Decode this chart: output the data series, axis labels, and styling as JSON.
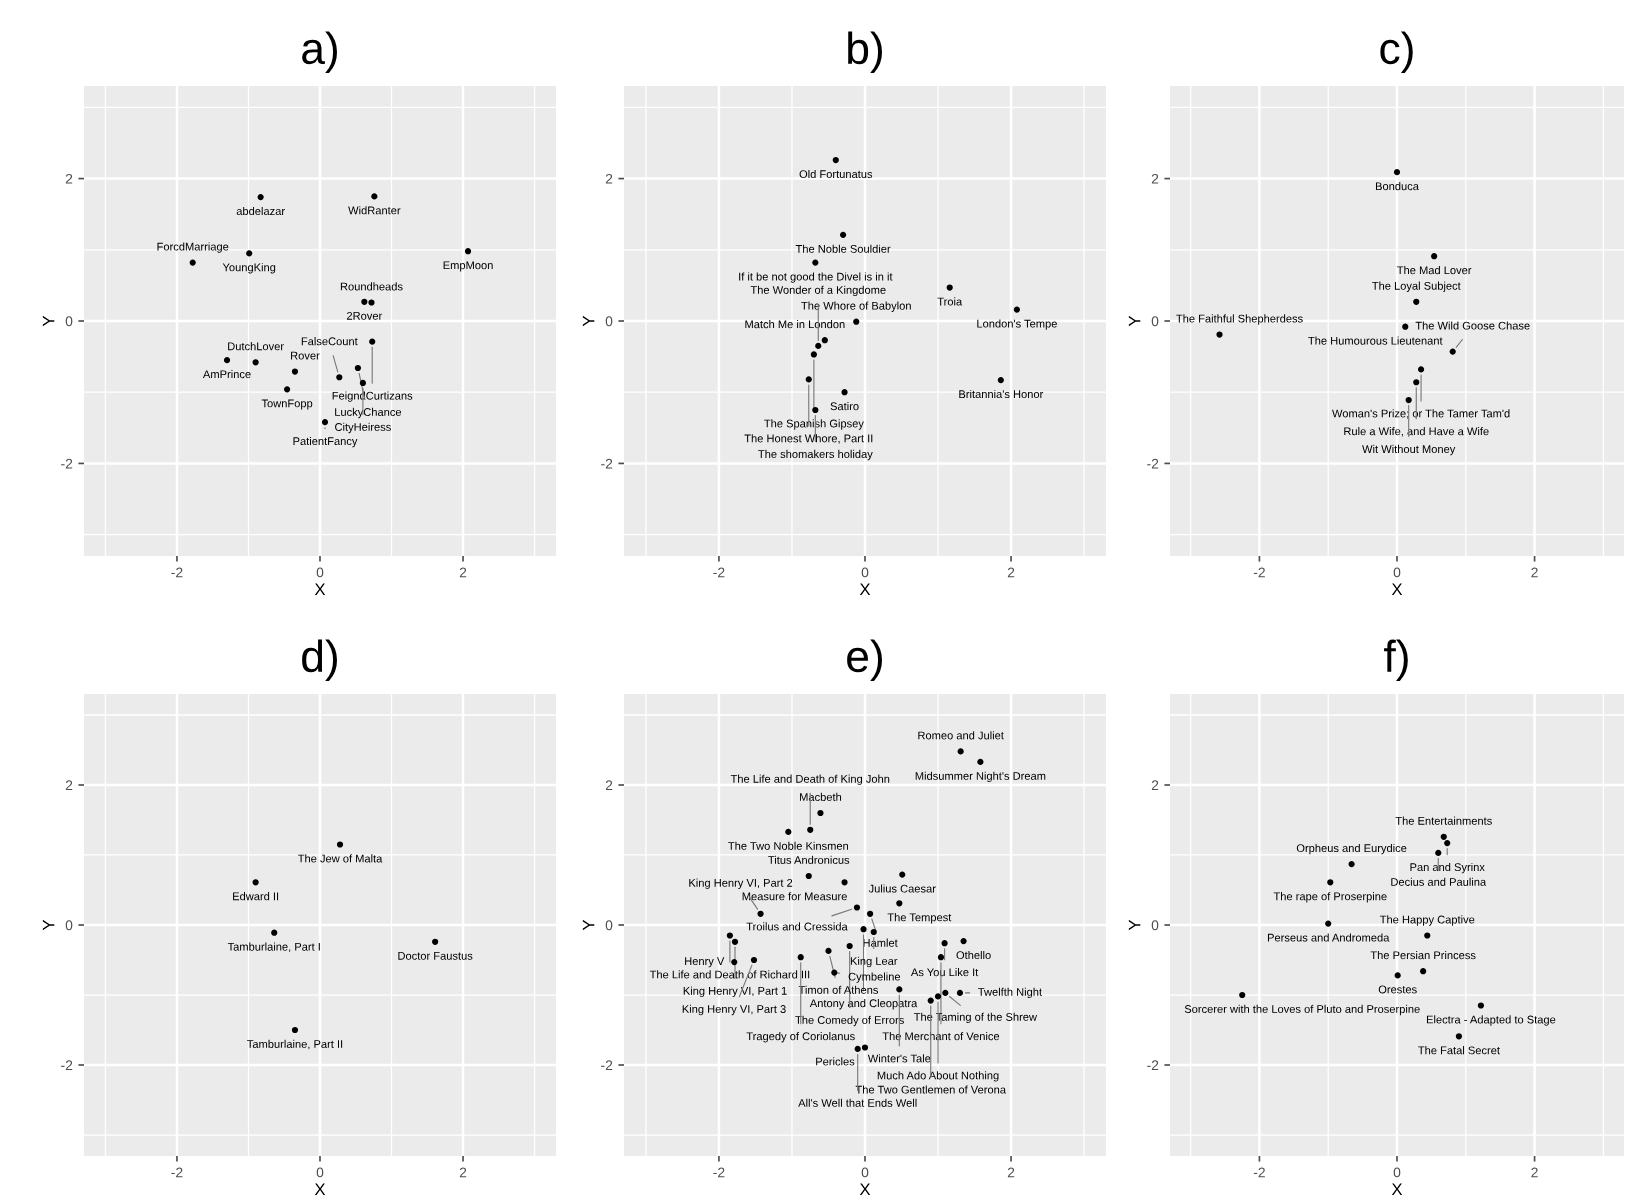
{
  "chart_data": [
    {
      "type": "scatter",
      "title": "a)",
      "xlabel": "X",
      "ylabel": "Y",
      "xlim": [
        -3.3,
        3.3
      ],
      "ylim": [
        -3.3,
        3.3
      ],
      "xticks": [
        -2,
        0,
        2
      ],
      "yticks": [
        -2,
        0,
        2
      ],
      "grid": true,
      "marker": "circle",
      "series": [
        {
          "color": "#000000",
          "x": [
            -0.83,
            0.76,
            2.07,
            -0.99,
            -1.78,
            0.62,
            0.72,
            0.73,
            -1.3,
            -0.9,
            -0.35,
            0.53,
            0.27,
            0.6,
            -0.46,
            0.07
          ],
          "values": [
            1.74,
            1.75,
            0.98,
            0.95,
            0.82,
            0.27,
            0.26,
            -0.29,
            -0.55,
            -0.58,
            -0.71,
            -0.66,
            -0.79,
            -0.87,
            -0.96,
            -1.42
          ]
        }
      ],
      "annotations": [
        {
          "text": "abdelazar",
          "x": -0.83,
          "y": 1.74
        },
        {
          "text": "WidRanter",
          "x": 0.76,
          "y": 1.75
        },
        {
          "text": "EmpMoon",
          "x": 2.07,
          "y": 0.98
        },
        {
          "text": "YoungKing",
          "x": -0.99,
          "y": 0.95
        },
        {
          "text": "ForcdMarriage",
          "x": -1.78,
          "y": 0.82
        },
        {
          "text": "2Rover",
          "x": 0.62,
          "y": 0.27
        },
        {
          "text": "Roundheads",
          "x": 0.72,
          "y": 0.26
        },
        {
          "text": "FeigndCurtizans",
          "x": 0.73,
          "y": -0.29
        },
        {
          "text": "AmPrince",
          "x": -1.3,
          "y": -0.55
        },
        {
          "text": "DutchLover",
          "x": -0.9,
          "y": -0.58
        },
        {
          "text": "Rover",
          "x": -0.35,
          "y": -0.71
        },
        {
          "text": "LuckyChance",
          "x": 0.53,
          "y": -0.66
        },
        {
          "text": "FalseCount",
          "x": 0.27,
          "y": -0.79
        },
        {
          "text": "CityHeiress",
          "x": 0.6,
          "y": -0.87
        },
        {
          "text": "TownFopp",
          "x": -0.46,
          "y": -0.96
        },
        {
          "text": "PatientFancy",
          "x": 0.07,
          "y": -1.42
        }
      ]
    },
    {
      "type": "scatter",
      "title": "b)",
      "xlabel": "X",
      "ylabel": "Y",
      "xlim": [
        -3.3,
        3.3
      ],
      "ylim": [
        -3.3,
        3.3
      ],
      "xticks": [
        -2,
        0,
        2
      ],
      "yticks": [
        -2,
        0,
        2
      ],
      "grid": true,
      "marker": "circle",
      "series": [
        {
          "color": "#000000",
          "x": [
            -0.4,
            -0.3,
            -0.68,
            1.16,
            2.08,
            -0.12,
            -0.55,
            -0.64,
            -0.7,
            -0.77,
            1.86,
            -0.28,
            -0.68
          ],
          "values": [
            2.26,
            1.21,
            0.82,
            0.47,
            0.16,
            -0.01,
            -0.27,
            -0.35,
            -0.47,
            -0.82,
            -0.83,
            -1.0,
            -1.25
          ]
        }
      ],
      "annotations": [
        {
          "text": "Old Fortunatus",
          "x": -0.4,
          "y": 2.26
        },
        {
          "text": "The Noble Souldier",
          "x": -0.3,
          "y": 1.21
        },
        {
          "text": "If it be not good the Divel is in it",
          "x": -0.68,
          "y": 0.82
        },
        {
          "text": "Troia",
          "x": 1.16,
          "y": 0.47
        },
        {
          "text": "London's Tempe",
          "x": 2.08,
          "y": 0.16
        },
        {
          "text": "The Whore of Babylon",
          "x": -0.12,
          "y": -0.01
        },
        {
          "text": "Match Me in London",
          "x": -0.55,
          "y": -0.27
        },
        {
          "text": "The Wonder of a Kingdome",
          "x": -0.64,
          "y": -0.35
        },
        {
          "text": "The Spanish Gipsey",
          "x": -0.7,
          "y": -0.47
        },
        {
          "text": "The Honest Whore, Part II",
          "x": -0.77,
          "y": -0.82
        },
        {
          "text": "Britannia's Honor",
          "x": 1.86,
          "y": -0.83
        },
        {
          "text": "Satiro",
          "x": -0.28,
          "y": -1.0
        },
        {
          "text": "The shomakers holiday",
          "x": -0.68,
          "y": -1.25
        }
      ]
    },
    {
      "type": "scatter",
      "title": "c)",
      "xlabel": "X",
      "ylabel": "Y",
      "xlim": [
        -3.3,
        3.3
      ],
      "ylim": [
        -3.3,
        3.3
      ],
      "xticks": [
        -2,
        0,
        2
      ],
      "yticks": [
        -2,
        0,
        2
      ],
      "grid": true,
      "marker": "circle",
      "series": [
        {
          "color": "#000000",
          "x": [
            0.0,
            0.54,
            0.28,
            0.12,
            -2.58,
            0.81,
            0.35,
            0.28,
            0.17
          ],
          "values": [
            2.09,
            0.91,
            0.27,
            -0.08,
            -0.19,
            -0.43,
            -0.68,
            -0.86,
            -1.11
          ]
        }
      ],
      "annotations": [
        {
          "text": "Bonduca",
          "x": 0.0,
          "y": 2.09
        },
        {
          "text": "The Mad Lover",
          "x": 0.54,
          "y": 0.91
        },
        {
          "text": "The Loyal Subject",
          "x": 0.28,
          "y": 0.27
        },
        {
          "text": "The Humourous Lieutenant",
          "x": 0.12,
          "y": -0.08
        },
        {
          "text": "The Faithful Shepherdess",
          "x": -2.58,
          "y": -0.19
        },
        {
          "text": "The Wild Goose Chase",
          "x": 0.81,
          "y": -0.43
        },
        {
          "text": "Woman's Prize; or The Tamer Tam'd",
          "x": 0.35,
          "y": -0.68
        },
        {
          "text": "Rule a Wife, and Have a Wife",
          "x": 0.28,
          "y": -0.86
        },
        {
          "text": "Wit Without Money",
          "x": 0.17,
          "y": -1.11
        }
      ]
    },
    {
      "type": "scatter",
      "title": "d)",
      "xlabel": "X",
      "ylabel": "Y",
      "xlim": [
        -3.3,
        3.3
      ],
      "ylim": [
        -3.3,
        3.3
      ],
      "xticks": [
        -2,
        0,
        2
      ],
      "yticks": [
        -2,
        0,
        2
      ],
      "grid": true,
      "marker": "circle",
      "series": [
        {
          "color": "#000000",
          "x": [
            0.28,
            -0.9,
            -0.64,
            1.61,
            -0.35
          ],
          "values": [
            1.15,
            0.61,
            -0.11,
            -0.24,
            -1.5
          ]
        }
      ],
      "annotations": [
        {
          "text": "The Jew of Malta",
          "x": 0.28,
          "y": 1.15
        },
        {
          "text": "Edward II",
          "x": -0.9,
          "y": 0.61
        },
        {
          "text": "Tamburlaine, Part I",
          "x": -0.64,
          "y": -0.11
        },
        {
          "text": "Doctor Faustus",
          "x": 1.61,
          "y": -0.24
        },
        {
          "text": "Tamburlaine, Part II",
          "x": -0.35,
          "y": -1.5
        }
      ]
    },
    {
      "type": "scatter",
      "title": "e)",
      "xlabel": "X",
      "ylabel": "Y",
      "xlim": [
        -3.3,
        3.3
      ],
      "ylim": [
        -3.3,
        3.3
      ],
      "xticks": [
        -2,
        0,
        2
      ],
      "yticks": [
        -2,
        0,
        2
      ],
      "grid": true,
      "marker": "circle",
      "series": [
        {
          "color": "#000000",
          "x": [
            1.31,
            1.58,
            -0.61,
            -1.05,
            -0.75,
            -0.77,
            0.51,
            -0.28,
            -0.11,
            0.47,
            0.07,
            -1.43,
            -0.02,
            0.12,
            -1.85,
            -1.78,
            1.09,
            1.35,
            -0.21,
            -0.5,
            1.04,
            -1.52,
            -1.79,
            -0.88,
            -0.42,
            0.47,
            1.1,
            1.3,
            1.0,
            0.9,
            -0.1,
            0.0
          ],
          "values": [
            2.48,
            2.33,
            1.6,
            1.33,
            1.36,
            0.7,
            0.72,
            0.61,
            0.25,
            0.31,
            0.16,
            0.16,
            -0.06,
            -0.1,
            -0.15,
            -0.24,
            -0.26,
            -0.23,
            -0.3,
            -0.37,
            -0.46,
            -0.5,
            -0.53,
            -0.46,
            -0.68,
            -0.92,
            -0.97,
            -0.97,
            -1.02,
            -1.08,
            -1.77,
            -1.75
          ]
        }
      ],
      "annotations": [
        {
          "text": "Romeo and Juliet",
          "x": 1.31,
          "y": 2.48
        },
        {
          "text": "Midsummer Night's Dream",
          "x": 1.58,
          "y": 2.33
        },
        {
          "text": "Macbeth",
          "x": -0.61,
          "y": 1.6
        },
        {
          "text": "The Two Noble Kinsmen",
          "x": -1.05,
          "y": 1.33
        },
        {
          "text": "The Life and Death of King John",
          "x": -0.75,
          "y": 1.36
        },
        {
          "text": "Titus Andronicus",
          "x": -0.77,
          "y": 0.7
        },
        {
          "text": "Julius Caesar",
          "x": 0.51,
          "y": 0.72
        },
        {
          "text": "Measure for Measure",
          "x": -0.28,
          "y": 0.61
        },
        {
          "text": "Troilus and Cressida",
          "x": -0.11,
          "y": 0.25
        },
        {
          "text": "The Tempest",
          "x": 0.47,
          "y": 0.31
        },
        {
          "text": "Hamlet",
          "x": 0.07,
          "y": 0.16
        },
        {
          "text": "King Henry VI, Part 2",
          "x": -1.43,
          "y": 0.16
        },
        {
          "text": "Antony and Cleopatra",
          "x": -0.02,
          "y": -0.06
        },
        {
          "text": "King Lear",
          "x": 0.12,
          "y": -0.1
        },
        {
          "text": "The Life and Death of Richard III",
          "x": -1.85,
          "y": -0.15
        },
        {
          "text": "King Henry VI, Part 1",
          "x": -1.78,
          "y": -0.24
        },
        {
          "text": "As You Like It",
          "x": 1.09,
          "y": -0.26
        },
        {
          "text": "Othello",
          "x": 1.35,
          "y": -0.23
        },
        {
          "text": "The Comedy of Errors",
          "x": -0.21,
          "y": -0.3
        },
        {
          "text": "Timon of Athens",
          "x": -0.5,
          "y": -0.37
        },
        {
          "text": "The Merchant of Venice",
          "x": 1.04,
          "y": -0.46
        },
        {
          "text": "King Henry VI, Part 3",
          "x": -1.52,
          "y": -0.5
        },
        {
          "text": "Henry V",
          "x": -1.79,
          "y": -0.53
        },
        {
          "text": "Tragedy of Coriolanus",
          "x": -0.88,
          "y": -0.46
        },
        {
          "text": "Cymbeline",
          "x": -0.42,
          "y": -0.68
        },
        {
          "text": "Winter's Tale",
          "x": 0.47,
          "y": -0.92
        },
        {
          "text": "The Taming of the Shrew",
          "x": 1.1,
          "y": -0.97
        },
        {
          "text": "Twelfth Night",
          "x": 1.3,
          "y": -0.97
        },
        {
          "text": "Much Ado About Nothing",
          "x": 1.0,
          "y": -1.02
        },
        {
          "text": "The Two Gentlemen of Verona",
          "x": 0.9,
          "y": -1.08
        },
        {
          "text": "All's Well that Ends Well",
          "x": -0.1,
          "y": -1.77
        },
        {
          "text": "Pericles",
          "x": 0.0,
          "y": -1.75
        }
      ]
    },
    {
      "type": "scatter",
      "title": "f)",
      "xlabel": "X",
      "ylabel": "Y",
      "xlim": [
        -3.3,
        3.3
      ],
      "ylim": [
        -3.3,
        3.3
      ],
      "xticks": [
        -2,
        0,
        2
      ],
      "yticks": [
        -2,
        0,
        2
      ],
      "grid": true,
      "marker": "circle",
      "series": [
        {
          "color": "#000000",
          "x": [
            0.68,
            0.73,
            0.6,
            -0.66,
            -0.97,
            -1.0,
            0.44,
            0.38,
            0.01,
            -2.25,
            1.22,
            0.9
          ],
          "values": [
            1.26,
            1.17,
            1.03,
            0.87,
            0.61,
            0.02,
            -0.15,
            -0.66,
            -0.72,
            -1.0,
            -1.15,
            -1.59
          ]
        }
      ],
      "annotations": [
        {
          "text": "The Entertainments",
          "x": 0.68,
          "y": 1.26
        },
        {
          "text": "Pan and Syrinx",
          "x": 0.73,
          "y": 1.17
        },
        {
          "text": "Decius and Paulina",
          "x": 0.6,
          "y": 1.03
        },
        {
          "text": "Orpheus and Eurydice",
          "x": -0.66,
          "y": 0.87
        },
        {
          "text": "The rape of Proserpine",
          "x": -0.97,
          "y": 0.61
        },
        {
          "text": "Perseus and Andromeda",
          "x": -1.0,
          "y": 0.02
        },
        {
          "text": "The Happy Captive",
          "x": 0.44,
          "y": -0.15
        },
        {
          "text": "The Persian Princess",
          "x": 0.38,
          "y": -0.66
        },
        {
          "text": "Orestes",
          "x": 0.01,
          "y": -0.72
        },
        {
          "text": "Sorcerer with the Loves of Pluto and Proserpine",
          "x": -2.25,
          "y": -1.0
        },
        {
          "text": "Electra - Adapted to Stage",
          "x": 1.22,
          "y": -1.15
        },
        {
          "text": "The Fatal Secret",
          "x": 0.9,
          "y": -1.59
        }
      ]
    }
  ]
}
